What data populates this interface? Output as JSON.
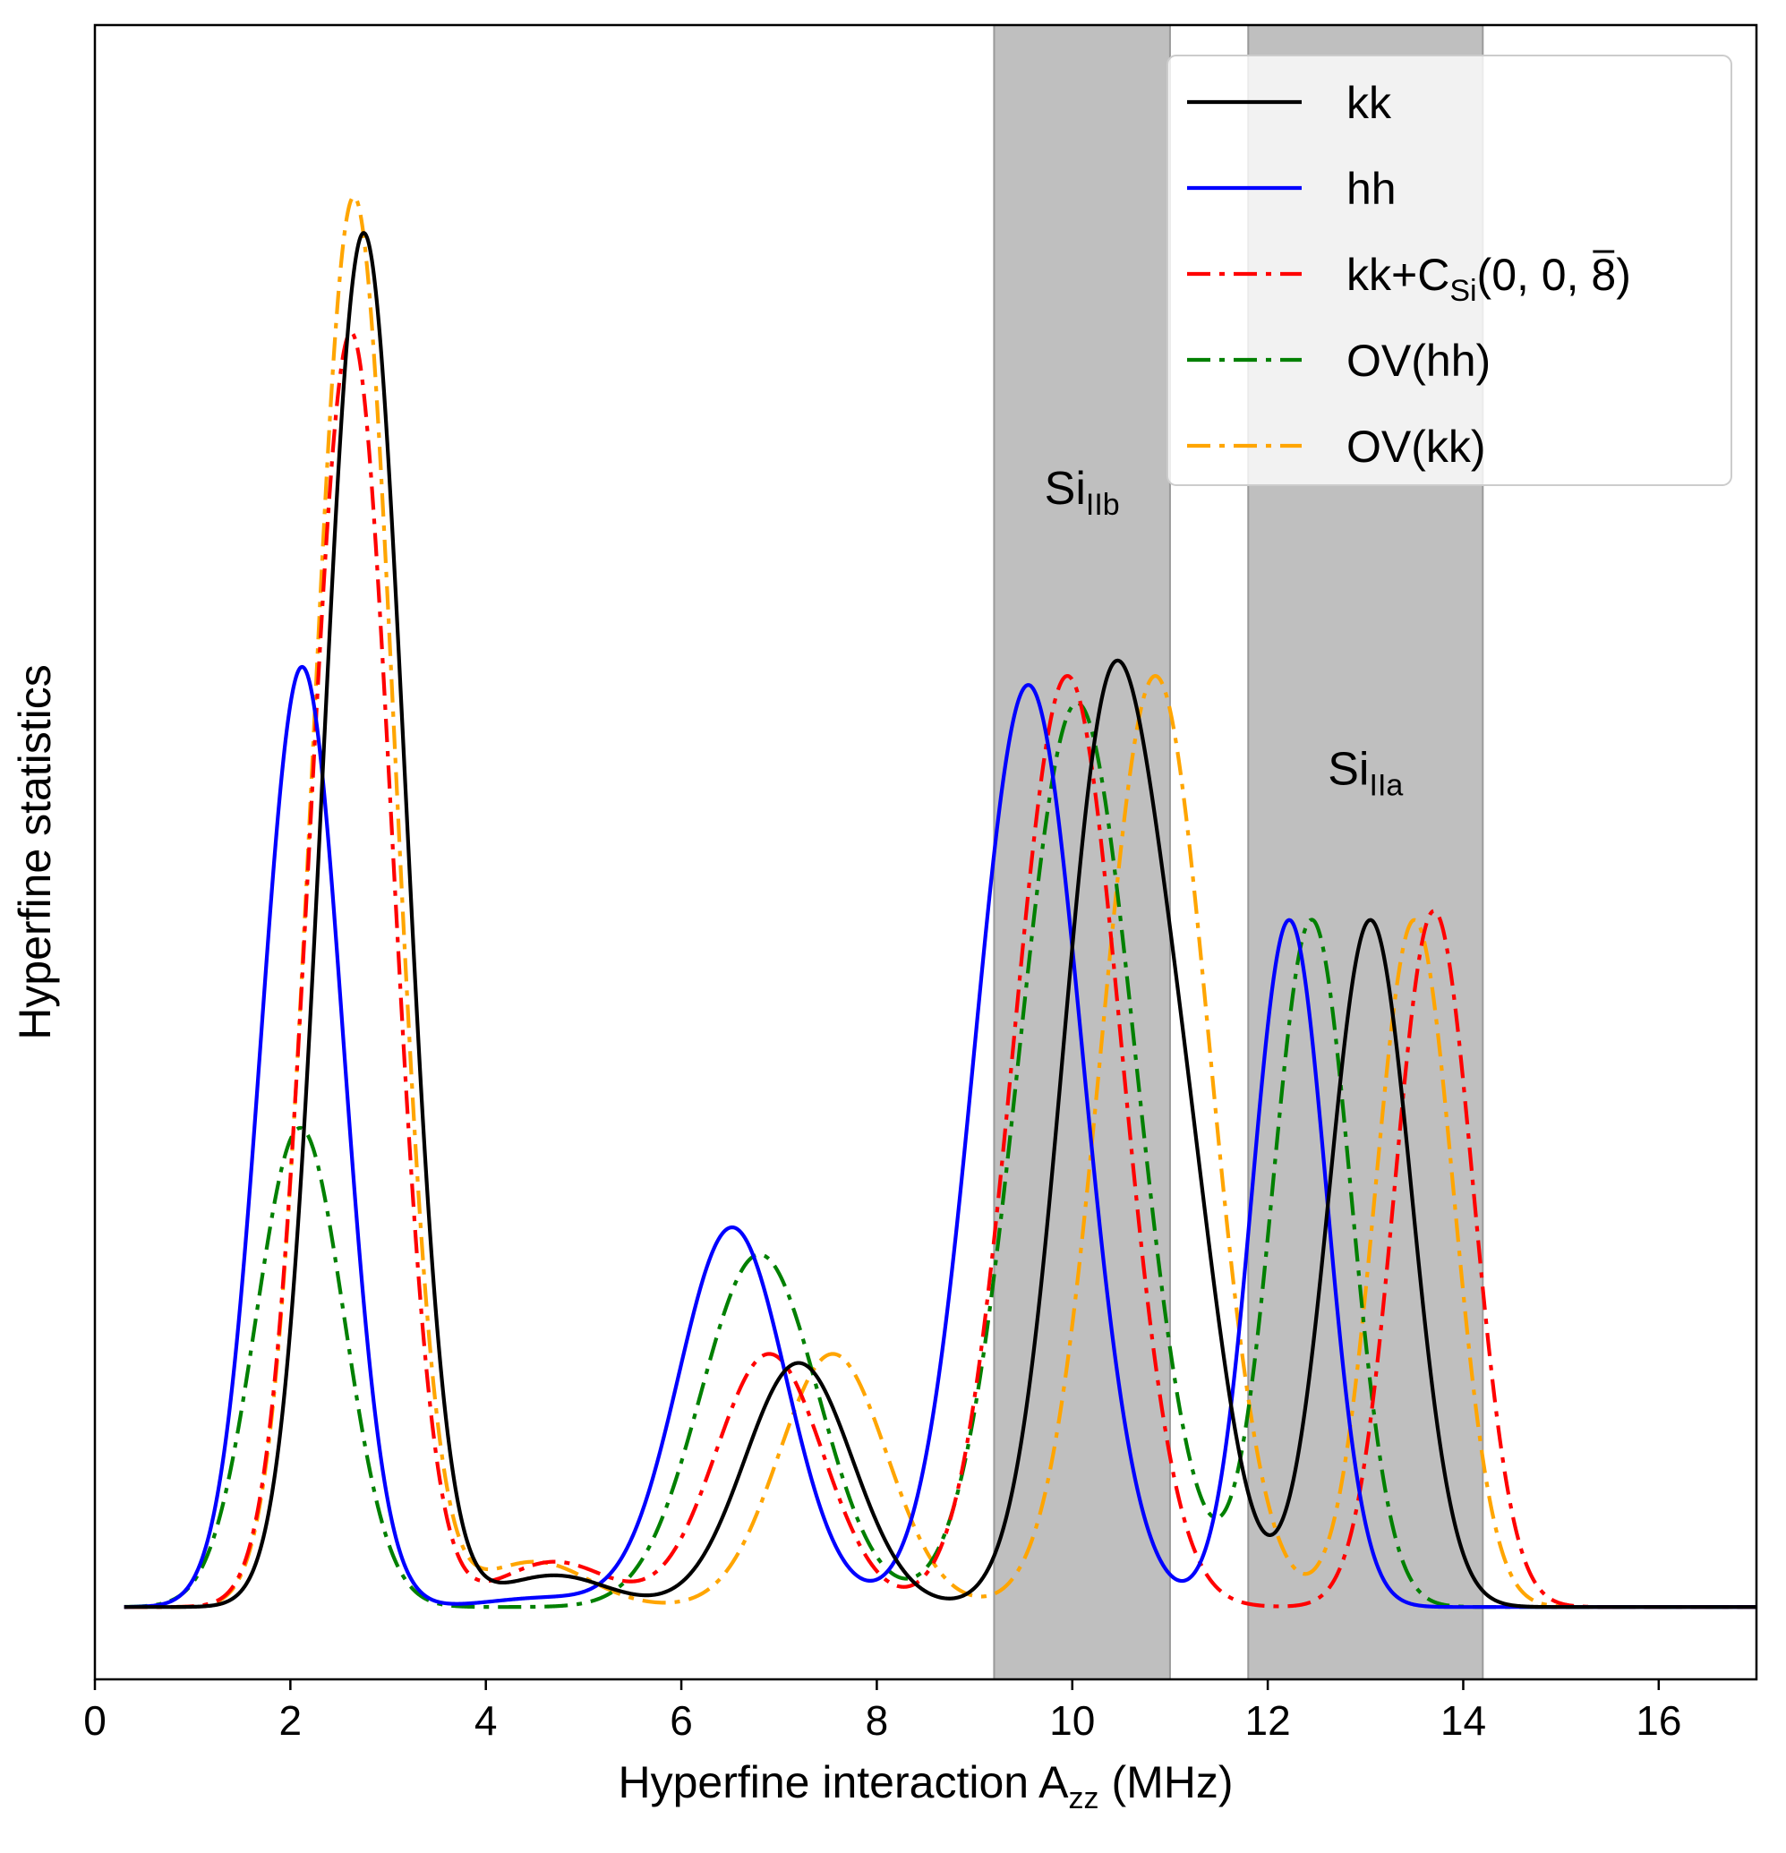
{
  "chart_data": {
    "type": "line",
    "xlabel": "Hyperfine interaction A",
    "xlabel_sub": "zz",
    "xlabel_unit": " (MHz)",
    "ylabel": "Hyperfine statistics",
    "xlim": [
      0,
      17
    ],
    "ylim": [
      -0.08,
      1.75
    ],
    "x_ticks": [
      0,
      2,
      4,
      6,
      8,
      10,
      12,
      14,
      16
    ],
    "x_tick_labels": [
      "0",
      "2",
      "4",
      "6",
      "8",
      "10",
      "12",
      "14",
      "16"
    ],
    "y_ticks_visible": false,
    "grid": false,
    "legend_position": "top-right",
    "shaded_regions": [
      {
        "from": 9.2,
        "to": 11.0,
        "label": "Si",
        "label_sub": "IIb",
        "label_x": 10.1,
        "label_y": 1.22
      },
      {
        "from": 11.8,
        "to": 14.2,
        "label": "Si",
        "label_sub": "IIa",
        "label_x": 13.0,
        "label_y": 0.91
      }
    ],
    "series": [
      {
        "key": "kk",
        "name": "kk",
        "color": "#000000",
        "style": "solid",
        "components": [
          {
            "mu": 2.75,
            "sigma": 0.42,
            "amp": 1.52
          },
          {
            "mu": 4.7,
            "sigma": 0.55,
            "amp": 0.035
          },
          {
            "mu": 7.2,
            "sigma": 0.55,
            "amp": 0.27
          },
          {
            "mu": 10.4,
            "sigma": 0.5,
            "amp": 1.0
          },
          {
            "mu": 11.2,
            "sigma": 0.4,
            "amp": 0.3
          },
          {
            "mu": 13.05,
            "sigma": 0.42,
            "amp": 0.76
          }
        ]
      },
      {
        "key": "hh",
        "name": "hh",
        "color": "#0000ff",
        "style": "solid",
        "components": [
          {
            "mu": 2.12,
            "sigma": 0.42,
            "amp": 1.04
          },
          {
            "mu": 4.6,
            "sigma": 0.55,
            "amp": 0.01
          },
          {
            "mu": 6.52,
            "sigma": 0.55,
            "amp": 0.42
          },
          {
            "mu": 9.55,
            "sigma": 0.55,
            "amp": 1.02
          },
          {
            "mu": 12.22,
            "sigma": 0.38,
            "amp": 0.76
          }
        ]
      },
      {
        "key": "kkcsi",
        "name": "kk+C",
        "name_sub": "Si",
        "name_suffix": "(0, 0, 8)",
        "name_overline_char": "8",
        "color": "#ff0000",
        "style": "dashdot",
        "components": [
          {
            "mu": 2.62,
            "sigma": 0.42,
            "amp": 1.41
          },
          {
            "mu": 4.7,
            "sigma": 0.55,
            "amp": 0.05
          },
          {
            "mu": 6.9,
            "sigma": 0.55,
            "amp": 0.28
          },
          {
            "mu": 9.95,
            "sigma": 0.55,
            "amp": 1.03
          },
          {
            "mu": 13.7,
            "sigma": 0.4,
            "amp": 0.77
          }
        ]
      },
      {
        "key": "ovhh",
        "name": "OV(hh)",
        "color": "#008000",
        "style": "dashdot",
        "components": [
          {
            "mu": 2.1,
            "sigma": 0.45,
            "amp": 0.53
          },
          {
            "mu": 6.8,
            "sigma": 0.6,
            "amp": 0.39
          },
          {
            "mu": 10.05,
            "sigma": 0.6,
            "amp": 1.0
          },
          {
            "mu": 12.45,
            "sigma": 0.4,
            "amp": 0.76
          }
        ]
      },
      {
        "key": "ovkk",
        "name": "OV(kk)",
        "color": "#ffa500",
        "style": "dashdot",
        "components": [
          {
            "mu": 2.65,
            "sigma": 0.42,
            "amp": 1.56
          },
          {
            "mu": 4.5,
            "sigma": 0.55,
            "amp": 0.05
          },
          {
            "mu": 7.55,
            "sigma": 0.55,
            "amp": 0.28
          },
          {
            "mu": 10.85,
            "sigma": 0.55,
            "amp": 1.03
          },
          {
            "mu": 13.5,
            "sigma": 0.4,
            "amp": 0.76
          }
        ]
      }
    ]
  }
}
